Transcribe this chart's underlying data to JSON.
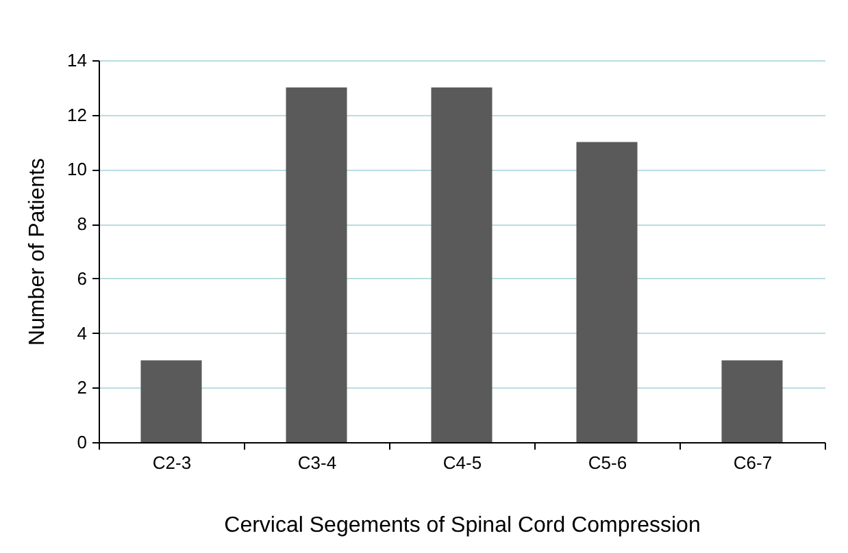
{
  "chart_data": {
    "type": "bar",
    "xlabel": "Cervical Segements of Spinal Cord Compression",
    "ylabel": "Number of Patients",
    "categories": [
      "C2-3",
      "C3-4",
      "C4-5",
      "C5-6",
      "C6-7"
    ],
    "values": [
      3,
      13,
      13,
      11,
      3
    ],
    "color": "#5a5a5a",
    "ylim": [
      0,
      14
    ],
    "yticks": [
      0,
      2,
      4,
      6,
      8,
      10,
      12,
      14
    ],
    "grid": "y"
  }
}
